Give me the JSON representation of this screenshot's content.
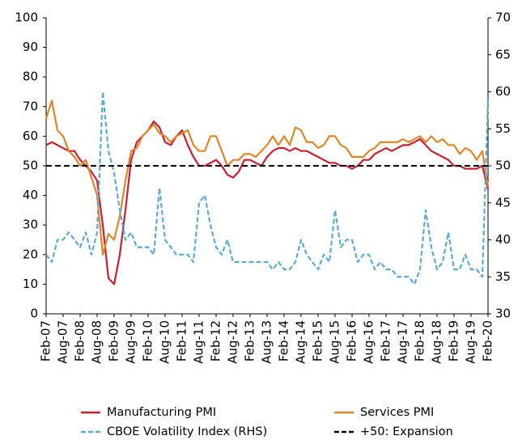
{
  "chart_data": {
    "type": "line",
    "categories": [
      "Feb-07",
      null,
      null,
      "Aug-07",
      null,
      null,
      "Feb-08",
      null,
      null,
      "Aug-08",
      null,
      null,
      "Feb-09",
      null,
      null,
      "Aug-09",
      null,
      null,
      "Feb-10",
      null,
      null,
      "Aug-10",
      null,
      null,
      "Feb-11",
      null,
      null,
      "Aug-11",
      null,
      null,
      "Feb-12",
      null,
      null,
      "Aug-12",
      null,
      null,
      "Feb-13",
      null,
      null,
      "Aug-13",
      null,
      null,
      "Feb-14",
      null,
      null,
      "Aug-14",
      null,
      null,
      "Feb-15",
      null,
      null,
      "Aug-15",
      null,
      null,
      "Feb-16",
      null,
      null,
      "Aug-16",
      null,
      null,
      "Feb-17",
      null,
      null,
      "Aug-17",
      null,
      null,
      "Feb-18",
      null,
      null,
      "Aug-18",
      null,
      null,
      "Feb-19",
      null,
      null,
      "Aug-19",
      null,
      null,
      "Feb-20"
    ],
    "series": [
      {
        "name": "Manufacturing PMI",
        "color": "#c8202f",
        "dashed": false,
        "values": [
          57,
          58,
          57,
          56,
          55,
          55,
          52,
          50,
          48,
          45,
          30,
          12,
          10,
          20,
          35,
          52,
          58,
          60,
          62,
          65,
          63,
          58,
          57,
          60,
          62,
          57,
          53,
          50,
          50,
          51,
          52,
          50,
          47,
          46,
          48,
          52,
          52,
          51,
          50,
          53,
          55,
          56,
          56,
          55,
          56,
          55,
          55,
          54,
          53,
          52,
          51,
          51,
          50,
          50,
          49,
          50,
          52,
          52,
          54,
          55,
          56,
          55,
          56,
          57,
          57,
          58,
          59,
          57,
          55,
          54,
          53,
          52,
          50,
          50,
          49,
          49,
          49,
          50,
          42
        ]
      },
      {
        "name": "Services PMI",
        "color": "#e0862a",
        "dashed": false,
        "values": [
          66,
          72,
          62,
          60,
          55,
          53,
          50,
          52,
          46,
          40,
          20,
          27,
          25,
          33,
          45,
          55,
          56,
          60,
          62,
          64,
          61,
          60,
          58,
          60,
          61,
          62,
          57,
          55,
          55,
          60,
          60,
          55,
          50,
          52,
          52,
          54,
          54,
          53,
          55,
          57,
          60,
          57,
          60,
          57,
          63,
          62,
          58,
          58,
          56,
          57,
          60,
          60,
          57,
          56,
          53,
          53,
          53,
          55,
          56,
          58,
          58,
          58,
          58,
          59,
          58,
          59,
          60,
          58,
          60,
          58,
          59,
          57,
          57,
          54,
          56,
          55,
          52,
          55,
          43
        ]
      },
      {
        "name": "CBOE Volatility Index (RHS)",
        "color": "#5aaad8",
        "dashed": true,
        "axis": "y2",
        "values": [
          38,
          37,
          40,
          40,
          41,
          40,
          39,
          41,
          38,
          41,
          60,
          52,
          49,
          44,
          40,
          41,
          39,
          39,
          39,
          38,
          47,
          40,
          39,
          38,
          38,
          38,
          37,
          45,
          46,
          42,
          39,
          38,
          40,
          37,
          37,
          37,
          37,
          37,
          37,
          37,
          36,
          37,
          36,
          36,
          37,
          40,
          38,
          37,
          36,
          38,
          37,
          44,
          39,
          40,
          40,
          37,
          38,
          38,
          36,
          37,
          36,
          36,
          35,
          35,
          35,
          34,
          36,
          44,
          39,
          36,
          37,
          41,
          36,
          36,
          38,
          36,
          36,
          35,
          59
        ]
      }
    ],
    "reference_line": {
      "name": "+50: Expansion",
      "value": 50,
      "color": "#000000"
    },
    "ylim": [
      0,
      100
    ],
    "yticks": [
      0,
      10,
      20,
      30,
      40,
      50,
      60,
      70,
      80,
      90,
      100
    ],
    "y2lim": [
      30,
      70
    ],
    "y2ticks": [
      30,
      35,
      40,
      45,
      50,
      55,
      60,
      65,
      70
    ],
    "grid": false,
    "legend": "bottom"
  }
}
